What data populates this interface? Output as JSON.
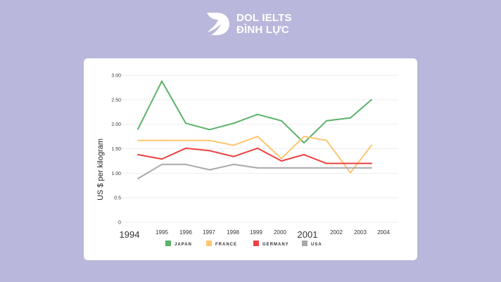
{
  "brand": {
    "line1": "DOL IELTS",
    "line2": "ĐÌNH LỰC"
  },
  "chart_data": {
    "type": "line",
    "title": "",
    "xlabel": "",
    "ylabel": "US $ per kilogram",
    "ylim": [
      0,
      3
    ],
    "yticks": [
      "0",
      "0.5",
      "1.00",
      "1.50",
      "2.00",
      "2.50",
      "3.00"
    ],
    "ytick_values": [
      0,
      0.5,
      1,
      1.5,
      2,
      2.5,
      3
    ],
    "categories": [
      "1994",
      "1995",
      "1996",
      "1997",
      "1998",
      "1999",
      "2000",
      "2001",
      "2002",
      "2003",
      "2004"
    ],
    "grid": true,
    "legend_position": "bottom",
    "series": [
      {
        "name": "JAPAN",
        "color": "#5bb26a",
        "values": [
          1.9,
          2.88,
          2.02,
          1.89,
          2.02,
          2.2,
          2.07,
          1.62,
          2.07,
          2.13,
          2.5
        ]
      },
      {
        "name": "FRANCE",
        "color": "#fdc66f",
        "values": [
          1.67,
          1.67,
          1.67,
          1.67,
          1.57,
          1.75,
          1.3,
          1.75,
          1.67,
          1.01,
          1.57
        ]
      },
      {
        "name": "GERMANY",
        "color": "#ec4242",
        "values": [
          1.38,
          1.29,
          1.51,
          1.46,
          1.34,
          1.51,
          1.25,
          1.38,
          1.2,
          1.2,
          1.2
        ]
      },
      {
        "name": "USA",
        "color": "#a9a8ad",
        "values": [
          0.89,
          1.18,
          1.18,
          1.07,
          1.18,
          1.11,
          1.11,
          1.11,
          1.11,
          1.11,
          1.11
        ]
      }
    ]
  }
}
